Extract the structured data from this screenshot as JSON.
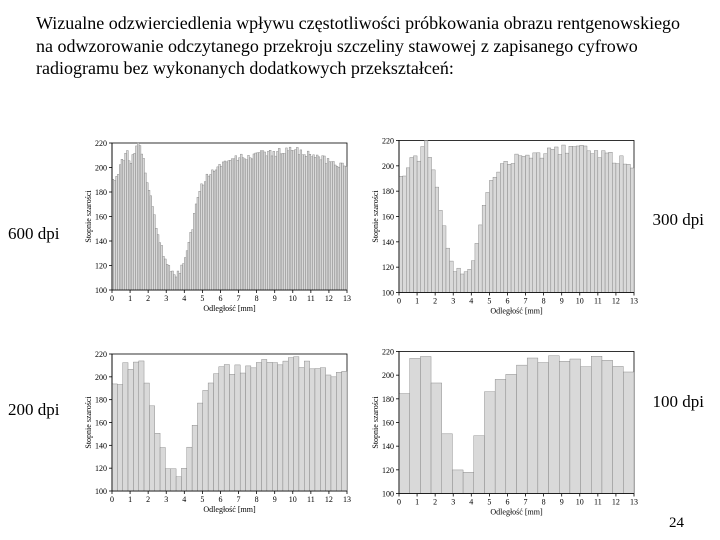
{
  "title": "Wizualne odzwierciedlenia wpływu częstotliwości próbkowania obrazu rentgenowskiego na odwzorowanie odczytanego przekroju szczeliny stawowej z zapisanego cyfrowo radiogramu bez wykonanych dodatkowych przekształceń:",
  "page_number": "24",
  "side_labels": {
    "top_left": "600 dpi",
    "top_right": "300 dpi",
    "bottom_left": "200 dpi",
    "bottom_right": "100 dpi"
  },
  "chart_common": {
    "xlabel": "Odległość [mm]",
    "ylabel": "Stopnie szarości",
    "xlim": [
      0,
      13
    ],
    "ylim": [
      100,
      220
    ],
    "xtick_step": 1,
    "ytick_step": 20,
    "tick_fontsize": 8,
    "label_fontsize": 8,
    "background_color": "#ffffff",
    "axis_color": "#000000",
    "bar_fill": "#d9d9d9",
    "bar_stroke": "#7a7a7a",
    "bar_stroke_width": 0.4,
    "aspect_ratio": 1.7
  },
  "profile": [
    190,
    188,
    192,
    196,
    200,
    204,
    208,
    212,
    211,
    208,
    206,
    210,
    214,
    216,
    218,
    215,
    210,
    205,
    198,
    190,
    182,
    176,
    168,
    160,
    152,
    146,
    140,
    134,
    128,
    124,
    120,
    118,
    116,
    115,
    114,
    113,
    114,
    116,
    118,
    122,
    126,
    131,
    138,
    145,
    152,
    160,
    168,
    175,
    180,
    185,
    188,
    190,
    192,
    194,
    196,
    198,
    200,
    201,
    202,
    203,
    204,
    205,
    205,
    206,
    206,
    206,
    206,
    207,
    207,
    207,
    208,
    208,
    208,
    208,
    209,
    209,
    209,
    209,
    210,
    210,
    210,
    211,
    211,
    211,
    211,
    212,
    212,
    212,
    212,
    212,
    212,
    213,
    213,
    213,
    213,
    213,
    214,
    214,
    214,
    214,
    214,
    214,
    214,
    213,
    213,
    213,
    212,
    212,
    211,
    211,
    210,
    210,
    209,
    209,
    208,
    208,
    207,
    207,
    206,
    206,
    205,
    205,
    204,
    204,
    203,
    203,
    202,
    202,
    201,
    201
  ],
  "charts": [
    {
      "id": "chart-600dpi",
      "bins": 130,
      "noise": 6
    },
    {
      "id": "chart-300dpi",
      "bins": 65,
      "noise": 8
    },
    {
      "id": "chart-200dpi",
      "bins": 44,
      "noise": 10
    },
    {
      "id": "chart-100dpi",
      "bins": 22,
      "noise": 12
    }
  ]
}
